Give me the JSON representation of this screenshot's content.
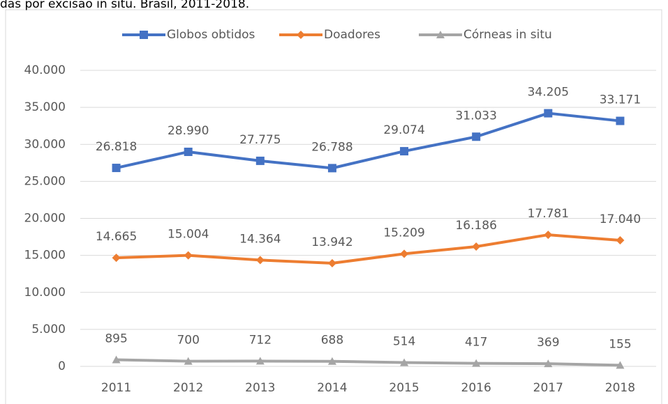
{
  "chart_data": {
    "type": "line",
    "title": "das por excisão in situ. Brasil, 2011-2018.",
    "categories": [
      "2011",
      "2012",
      "2013",
      "2014",
      "2015",
      "2016",
      "2017",
      "2018"
    ],
    "series": [
      {
        "name": "Globos obtidos",
        "color": "#4472c4",
        "marker": "square",
        "values": [
          26818,
          28990,
          27775,
          26788,
          29074,
          31033,
          34205,
          33171
        ],
        "value_labels": [
          "26.818",
          "28.990",
          "27.775",
          "26.788",
          "29.074",
          "31.033",
          "34.205",
          "33.171"
        ]
      },
      {
        "name": "Doadores",
        "color": "#ed7d31",
        "marker": "diamond",
        "values": [
          14665,
          15004,
          14364,
          13942,
          15209,
          16186,
          17781,
          17040
        ],
        "value_labels": [
          "14.665",
          "15.004",
          "14.364",
          "13.942",
          "15.209",
          "16.186",
          "17.781",
          "17.040"
        ]
      },
      {
        "name": "Córneas in situ",
        "color": "#a5a5a5",
        "marker": "triangle",
        "values": [
          895,
          700,
          712,
          688,
          514,
          417,
          369,
          155
        ]
      }
    ],
    "ylim": [
      0,
      40000
    ],
    "yticks": [
      0,
      {
        "value": 5000,
        "label": "5.000"
      },
      {
        "value": 10000,
        "label": "10.000"
      },
      {
        "value": 15000,
        "label": "15.000"
      },
      {
        "value": 20000,
        "label": "20.000"
      },
      {
        "value": 25000,
        "label": "25.000"
      },
      {
        "value": 30000,
        "label": "30.000"
      },
      {
        "value": 35000,
        "label": "35.000"
      },
      {
        "value": 40000,
        "label": "40.000"
      }
    ],
    "grid": true,
    "legend": "top"
  }
}
